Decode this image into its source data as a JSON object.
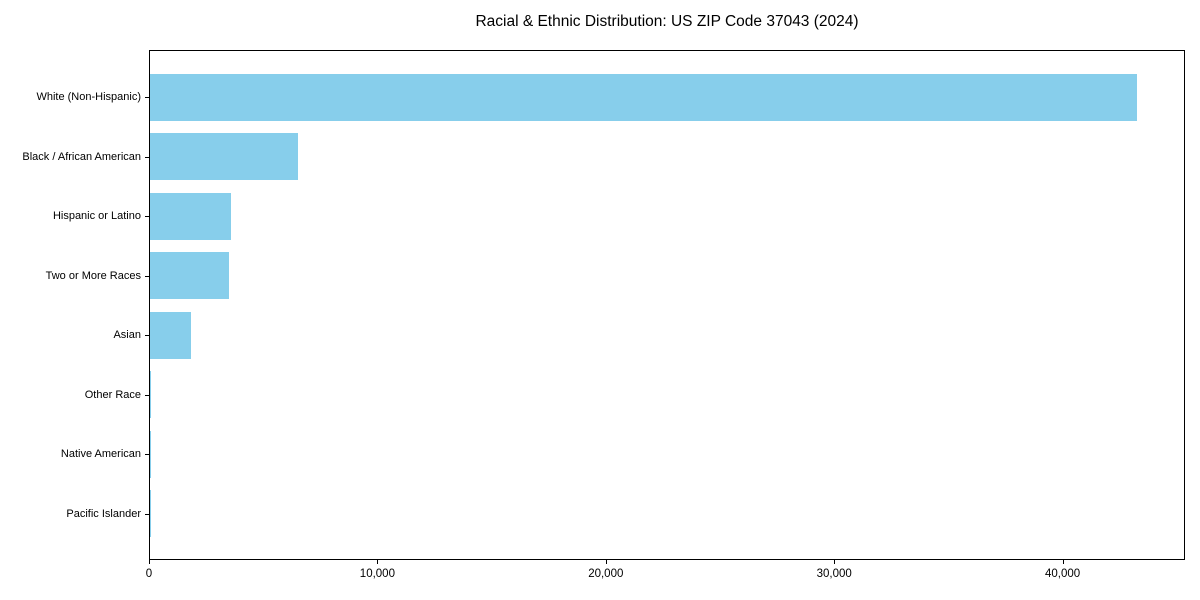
{
  "chart_data": {
    "type": "bar",
    "orientation": "horizontal",
    "title": "Racial & Ethnic Distribution: US ZIP Code 37043 (2024)",
    "categories": [
      "White (Non-Hispanic)",
      "Black / African American",
      "Hispanic or Latino",
      "Two or More Races",
      "Asian",
      "Other Race",
      "Native American",
      "Pacific Islander"
    ],
    "values": [
      43200,
      6500,
      3550,
      3450,
      1800,
      40,
      20,
      10
    ],
    "xlabel": "",
    "ylabel": "",
    "xlim": [
      0,
      45360
    ],
    "x_ticks": [
      0,
      10000,
      20000,
      30000,
      40000
    ],
    "x_tick_labels": [
      "0",
      "10,000",
      "20,000",
      "30,000",
      "40,000"
    ],
    "bar_color": "#87CEEB",
    "background_color": "#ffffff",
    "spine_color": "#000000",
    "grid": false,
    "legend_position": "none"
  }
}
